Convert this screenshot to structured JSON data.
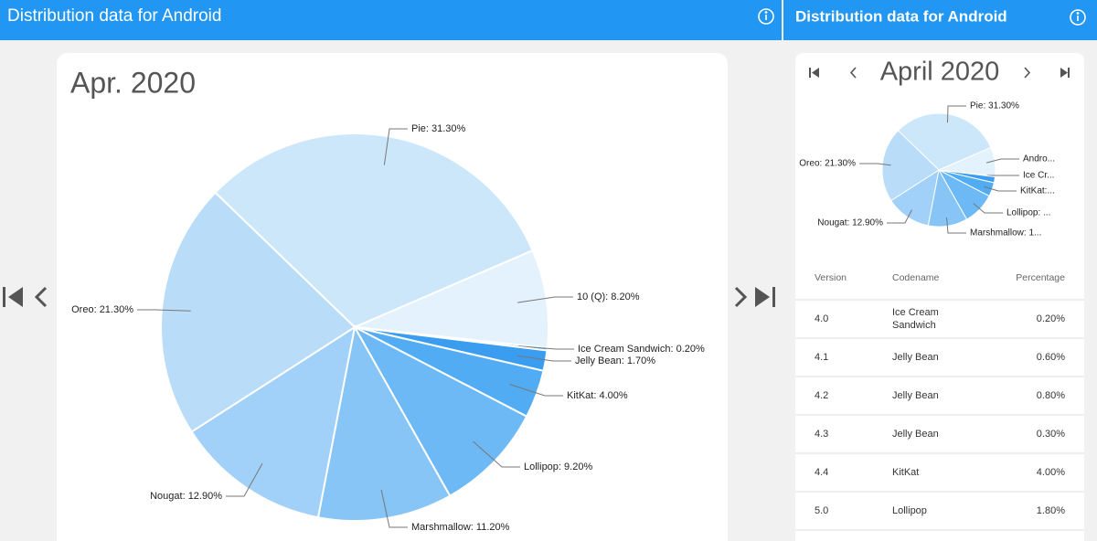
{
  "headers": [
    {
      "title": "Distribution data for Android"
    },
    {
      "title": "Distribution data for Android"
    }
  ],
  "chart_data": [
    {
      "type": "pie",
      "title": "Apr. 2020",
      "values": [
        31.3,
        8.2,
        0.2,
        1.7,
        4.0,
        9.2,
        11.2,
        12.9,
        21.3
      ],
      "value_labels": [
        "Pie: 31.30%",
        "10 (Q): 8.20%",
        "Ice Cream Sandwich: 0.20%",
        "Jelly Bean: 1.70%",
        "KitKat: 4.00%",
        "Lollipop: 9.20%",
        "Marshmallow: 11.20%",
        "Nougat: 12.90%",
        "Oreo: 21.30%"
      ],
      "colors": [
        "#cde7fa",
        "#e4f2fd",
        "#2f95ee",
        "#3b9df0",
        "#52acf3",
        "#6cb9f5",
        "#86c5f6",
        "#a1d1f8",
        "#b9dcf9"
      ]
    },
    {
      "type": "pie",
      "title": "April 2020",
      "values": [
        31.3,
        8.2,
        0.2,
        1.7,
        4.0,
        9.2,
        11.2,
        12.9,
        21.3
      ],
      "value_labels": [
        "Pie: 31.30%",
        "Andro...",
        "Ice Cr...",
        null,
        "KitKat:...",
        "Lollipop: ...",
        "Marshmallow: 1...",
        "Nougat: 12.90%",
        "Oreo: 21.30%"
      ],
      "colors": [
        "#cde7fa",
        "#e4f2fd",
        "#2f95ee",
        "#3b9df0",
        "#52acf3",
        "#6cb9f5",
        "#86c5f6",
        "#a1d1f8",
        "#b9dcf9"
      ]
    }
  ],
  "table": {
    "columns": [
      "Version",
      "Codename",
      "Percentage"
    ],
    "rows": [
      [
        "4.0",
        "Ice Cream Sandwich",
        "0.20%"
      ],
      [
        "4.1",
        "Jelly Bean",
        "0.60%"
      ],
      [
        "4.2",
        "Jelly Bean",
        "0.80%"
      ],
      [
        "4.3",
        "Jelly Bean",
        "0.30%"
      ],
      [
        "4.4",
        "KitKat",
        "4.00%"
      ],
      [
        "5.0",
        "Lollipop",
        "1.80%"
      ]
    ]
  }
}
